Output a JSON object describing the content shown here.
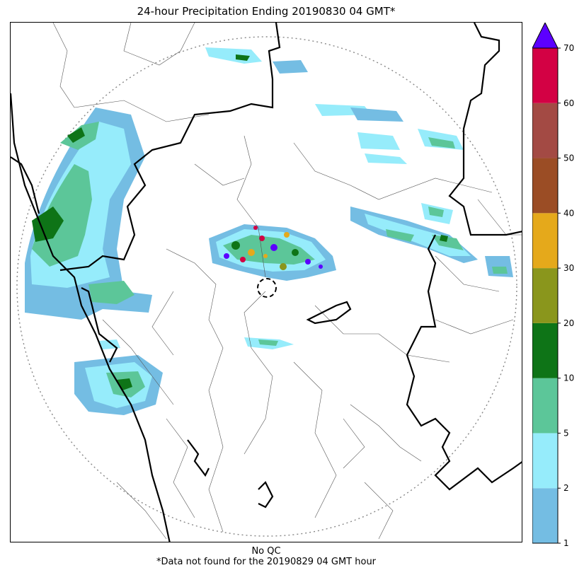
{
  "title": "24-hour Precipitation Ending 20190830 04 GMT*",
  "footer": {
    "qc_note": "No QC",
    "missing_note": "*Data not found for the 20190829 04 GMT hour"
  },
  "colorbar": {
    "ticks": [
      "1",
      "2",
      "5",
      "10",
      "20",
      "30",
      "40",
      "50",
      "60",
      "70"
    ],
    "colors": [
      "#74bde3",
      "#96ecfb",
      "#5cc699",
      "#0e7417",
      "#8a961c",
      "#e5a91b",
      "#9b4d25",
      "#a34a44",
      "#d30144"
    ],
    "extend_color": "#5c00ff"
  },
  "legend_levels": [
    {
      "min": 1,
      "max": 2,
      "color": "#74bde3"
    },
    {
      "min": 2,
      "max": 5,
      "color": "#96ecfb"
    },
    {
      "min": 5,
      "max": 10,
      "color": "#5cc699"
    },
    {
      "min": 10,
      "max": 20,
      "color": "#0e7417"
    },
    {
      "min": 20,
      "max": 30,
      "color": "#8a961c"
    },
    {
      "min": 30,
      "max": 40,
      "color": "#e5a91b"
    },
    {
      "min": 40,
      "max": 50,
      "color": "#9b4d25"
    },
    {
      "min": 50,
      "max": 60,
      "color": "#a34a44"
    },
    {
      "min": 60,
      "max": 70,
      "color": "#d30144"
    },
    {
      "min": 70,
      "max": null,
      "color": "#5c00ff"
    }
  ]
}
